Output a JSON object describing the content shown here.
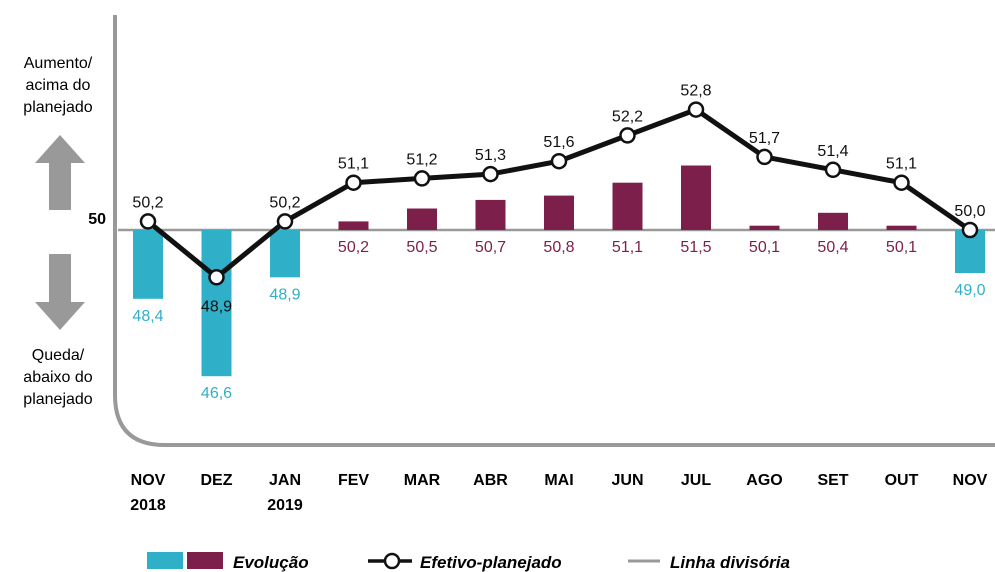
{
  "chart_data": {
    "type": "bar_line",
    "categories": [
      "NOV\n2018",
      "DEZ",
      "JAN\n2019",
      "FEV",
      "MAR",
      "ABR",
      "MAI",
      "JUN",
      "JUL",
      "AGO",
      "SET",
      "OUT",
      "NOV"
    ],
    "ylim": [
      45,
      55
    ],
    "yticks": [
      50
    ],
    "baseline": 50,
    "series": [
      {
        "name": "Evolução",
        "type": "bar",
        "color_below": "#2fb0c8",
        "color_above": "#7d1f4b",
        "values": [
          48.4,
          46.6,
          48.9,
          50.2,
          50.5,
          50.7,
          50.8,
          51.1,
          51.5,
          50.1,
          50.4,
          50.1,
          49.0
        ],
        "value_labels": [
          "48,4",
          "46,6",
          "48,9",
          "50,2",
          "50,5",
          "50,7",
          "50,8",
          "51,1",
          "51,5",
          "50,1",
          "50,4",
          "50,1",
          "49,0"
        ]
      },
      {
        "name": "Efetivo-planejado",
        "type": "line",
        "color": "#111111",
        "values": [
          50.2,
          48.9,
          50.2,
          51.1,
          51.2,
          51.3,
          51.6,
          52.2,
          52.8,
          51.7,
          51.4,
          51.1,
          50.0
        ],
        "value_labels": [
          "50,2",
          "48,9",
          "50,2",
          "51,1",
          "51,2",
          "51,3",
          "51,6",
          "52,2",
          "52,8",
          "51,7",
          "51,4",
          "51,1",
          "50,0"
        ]
      }
    ],
    "baseline_name": "Linha divisória",
    "baseline_color": "#999999",
    "annotations": [
      "Aumento/\nacima do\nplanejado",
      "Queda/\nabaixo do\nplanejado"
    ]
  }
}
